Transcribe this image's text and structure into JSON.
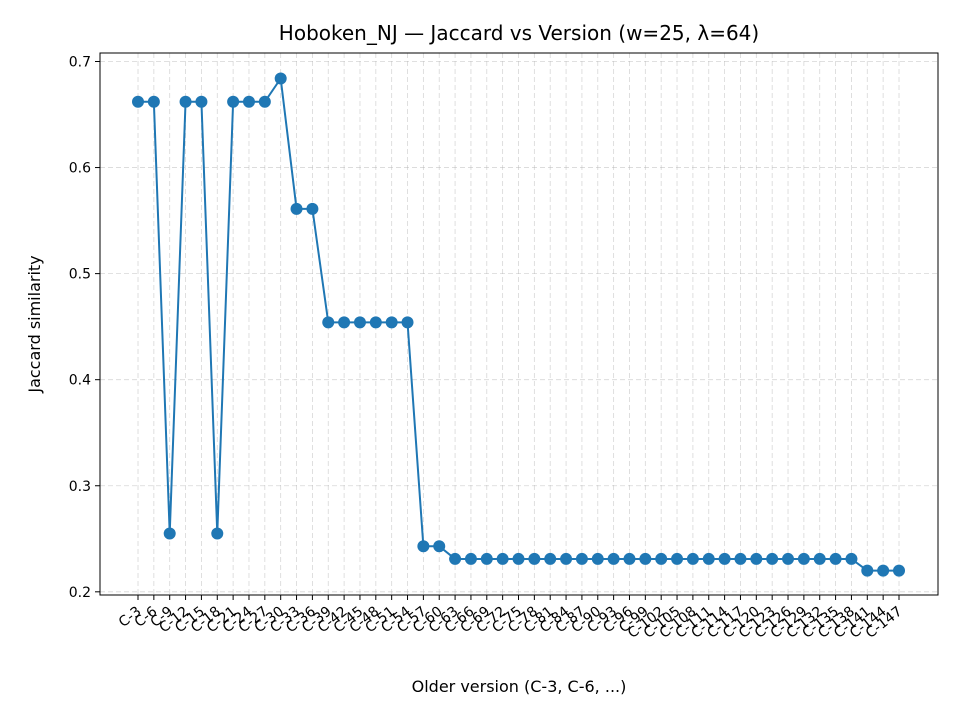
{
  "chart_data": {
    "type": "line",
    "title": "Hoboken_NJ — Jaccard vs Version (w=25, λ=64)",
    "xlabel": "Older version (C-3, C-6, ...)",
    "ylabel": "Jaccard similarity",
    "ylim": [
      0.197,
      0.708
    ],
    "yticks": [
      0.2,
      0.3,
      0.4,
      0.5,
      0.6,
      0.7
    ],
    "grid": true,
    "color": "#1f77b4",
    "categories": [
      "C-3",
      "C-6",
      "C-9",
      "C-12",
      "C-15",
      "C-18",
      "C-21",
      "C-24",
      "C-27",
      "C-30",
      "C-33",
      "C-36",
      "C-39",
      "C-42",
      "C-45",
      "C-48",
      "C-51",
      "C-54",
      "C-57",
      "C-60",
      "C-63",
      "C-66",
      "C-69",
      "C-72",
      "C-75",
      "C-78",
      "C-81",
      "C-84",
      "C-87",
      "C-90",
      "C-93",
      "C-96",
      "C-99",
      "C-102",
      "C-105",
      "C-108",
      "C-111",
      "C-114",
      "C-117",
      "C-120",
      "C-123",
      "C-126",
      "C-129",
      "C-132",
      "C-135",
      "C-138",
      "C-141",
      "C-144",
      "C-147"
    ],
    "values": [
      0.662,
      0.662,
      0.255,
      0.662,
      0.662,
      0.255,
      0.662,
      0.662,
      0.662,
      0.684,
      0.561,
      0.561,
      0.454,
      0.454,
      0.454,
      0.454,
      0.454,
      0.454,
      0.243,
      0.243,
      0.231,
      0.231,
      0.231,
      0.231,
      0.231,
      0.231,
      0.231,
      0.231,
      0.231,
      0.231,
      0.231,
      0.231,
      0.231,
      0.231,
      0.231,
      0.231,
      0.231,
      0.231,
      0.231,
      0.231,
      0.231,
      0.231,
      0.231,
      0.231,
      0.231,
      0.231,
      0.22,
      0.22,
      0.22
    ]
  }
}
